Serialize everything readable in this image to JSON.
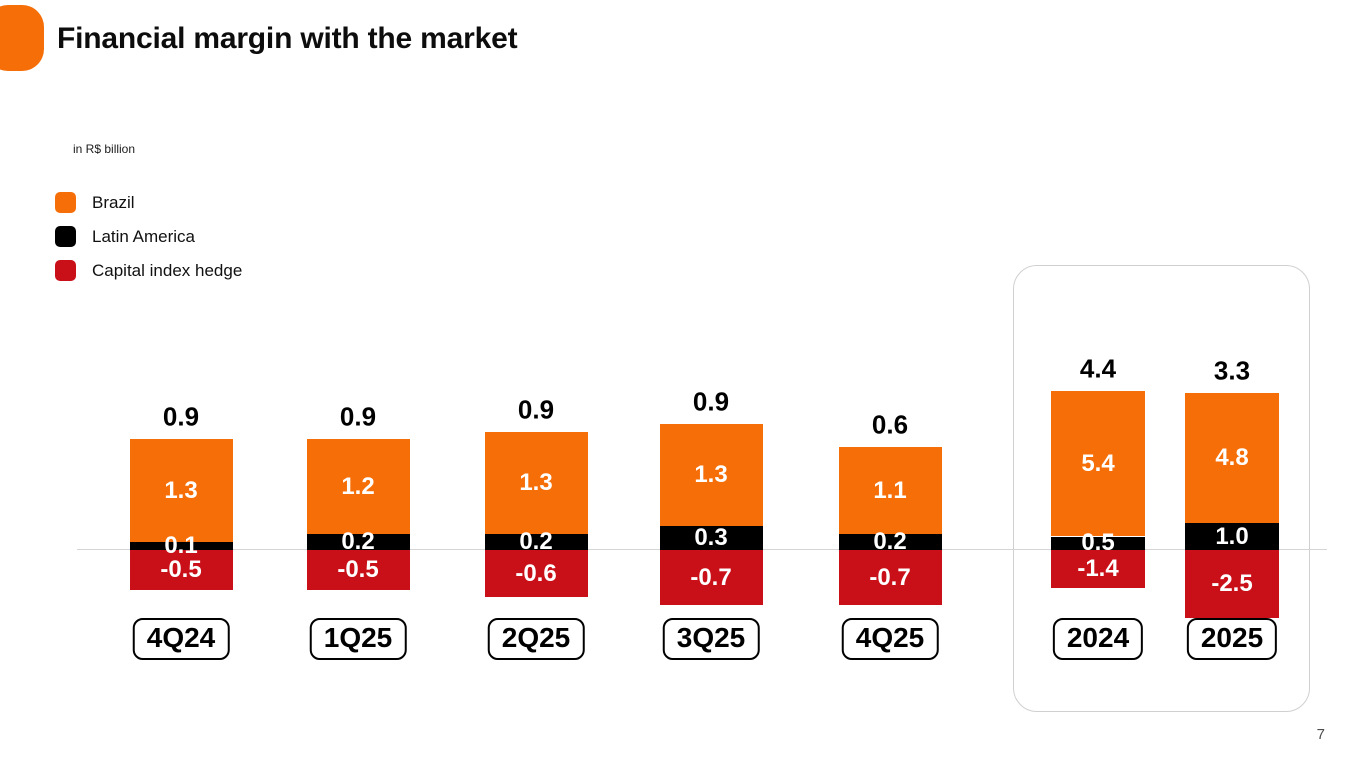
{
  "slide": {
    "title": "Financial margin with the market",
    "unit_note": "in R$ billion",
    "page_number": "7"
  },
  "theme": {
    "brand_orange": "#F66E08",
    "black": "#000000",
    "dark_red": "#C90F18",
    "gridline_gray": "#D5D5D5",
    "box_border_gray": "#D0D0D0"
  },
  "legend": [
    {
      "label": "Brazil",
      "color": "#F66E08",
      "icon": "orange-swatch-icon"
    },
    {
      "label": "Latin America",
      "color": "#000000",
      "icon": "black-swatch-icon"
    },
    {
      "label": "Capital index hedge",
      "color": "#C90F18",
      "icon": "red-swatch-icon"
    }
  ],
  "chart_data": {
    "type": "bar",
    "stacked": true,
    "title": "Financial margin with the market",
    "unit": "R$ billion",
    "categories": [
      "4Q24",
      "1Q25",
      "2Q25",
      "3Q25",
      "4Q25",
      "2024",
      "2025"
    ],
    "series": [
      {
        "name": "Brazil",
        "color": "#F66E08",
        "values": [
          1.3,
          1.2,
          1.3,
          1.3,
          1.1,
          5.4,
          4.8
        ]
      },
      {
        "name": "Latin America",
        "color": "#000000",
        "values": [
          0.1,
          0.2,
          0.2,
          0.3,
          0.2,
          0.5,
          1.0
        ]
      },
      {
        "name": "Capital index hedge",
        "color": "#C90F18",
        "values": [
          -0.5,
          -0.5,
          -0.6,
          -0.7,
          -0.7,
          -1.4,
          -2.5
        ]
      }
    ],
    "totals": [
      0.9,
      0.9,
      0.9,
      0.9,
      0.6,
      4.4,
      3.3
    ],
    "annual_group_categories": [
      "2024",
      "2025"
    ],
    "notes": "Quarterly bars and annual bars drawn at different value scales; baseline gridline only; data labels on every segment and total above each bar",
    "legend_position": "top-left",
    "grid": "baseline-only"
  }
}
